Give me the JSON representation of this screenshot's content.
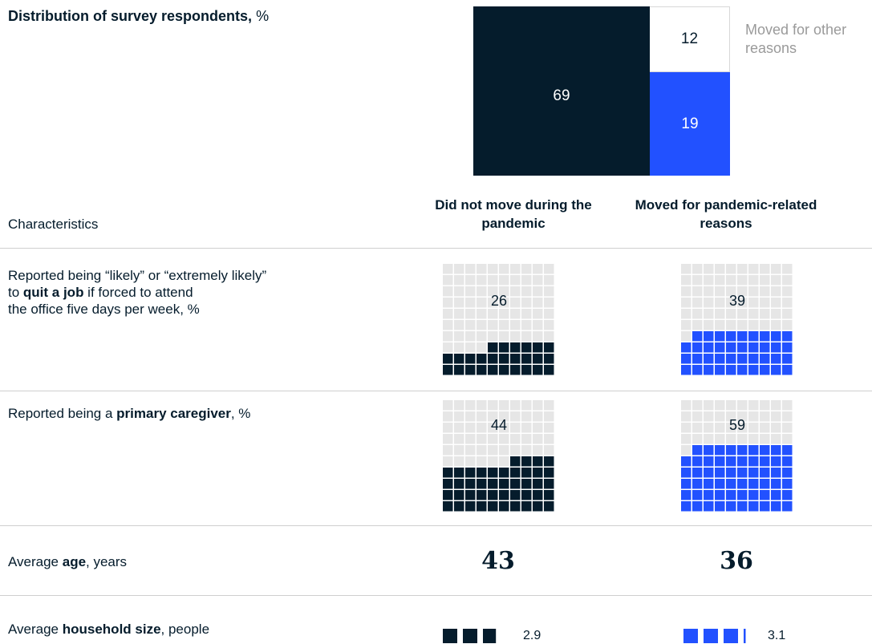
{
  "header": {
    "title_bold": "Distribution of survey respondents,",
    "title_unit": "%"
  },
  "colors": {
    "navy": "#051c2c",
    "blue": "#2251ff",
    "light_grey": "#e6e6e6",
    "rule": "#cfcfcf"
  },
  "chart_data": [
    {
      "type": "treemap",
      "title": "Distribution of survey respondents, %",
      "segments": [
        {
          "label": "",
          "value": 69,
          "color": "#051c2c",
          "text_color": "#ffffff"
        },
        {
          "label": "Moved for other reasons",
          "value": 12,
          "color": "#ffffff",
          "text_color": "#051c2c"
        },
        {
          "label": "",
          "value": 19,
          "color": "#2251ff",
          "text_color": "#ffffff"
        }
      ],
      "values_text": [
        "69",
        "12",
        "19"
      ]
    },
    {
      "type": "table",
      "columns": [
        "Did not move during the pandemic",
        "Moved for pandemic-related reasons"
      ],
      "column_header_label": "Characteristics",
      "rows": [
        {
          "label_parts": [
            "Reported being “likely” or “extremely likely” to ",
            "quit a job",
            " if forced to attend the office five days per week, %"
          ],
          "type": "waffle",
          "values": [
            26,
            39
          ]
        },
        {
          "label_parts": [
            "Reported being a ",
            "primary caregiver",
            ", %"
          ],
          "type": "waffle",
          "values": [
            44,
            59
          ]
        },
        {
          "label_parts": [
            "Average ",
            "age",
            ", years"
          ],
          "type": "number",
          "values": [
            43,
            36
          ]
        },
        {
          "label_parts": [
            "Average ",
            "household size",
            ", people"
          ],
          "type": "squares",
          "values": [
            2.9,
            3.1
          ]
        }
      ]
    }
  ],
  "text": {
    "other_reasons": "Moved for other reasons",
    "col1": "Did not move during the pandemic",
    "col2": "Moved for pandemic-related reasons",
    "characteristics": "Characteristics",
    "row1_a": "Reported being “likely” or “extremely likely”",
    "row1_b": "to ",
    "row1_bold": "quit a job",
    "row1_c": " if forced to attend",
    "row1_d": "the office five days per week, %",
    "row2_a": "Reported being a ",
    "row2_bold": "primary caregiver",
    "row2_c": ", %",
    "row3_a": "Average ",
    "row3_bold": "age",
    "row3_c": ", years",
    "row4_a": "Average ",
    "row4_bold": "household size",
    "row4_c": ", people",
    "v69": "69",
    "v12": "12",
    "v19": "19",
    "w26": "26",
    "w39": "39",
    "w44": "44",
    "w59": "59",
    "age1": "43",
    "age2": "36",
    "hh1": "2.9",
    "hh2": "3.1"
  }
}
